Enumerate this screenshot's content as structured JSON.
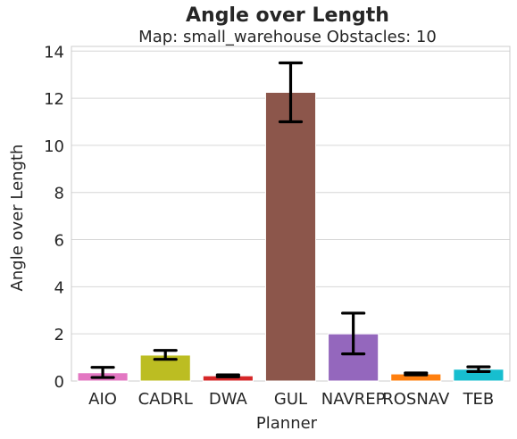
{
  "chart_data": {
    "type": "bar",
    "title": "Angle over Length",
    "subtitle": "Map: small_warehouse Obstacles: 10",
    "xlabel": "Planner",
    "ylabel": "Angle over Length",
    "ylim": [
      0,
      14.2
    ],
    "yticks": [
      "0",
      "2",
      "4",
      "6",
      "8",
      "10",
      "12",
      "14"
    ],
    "grid": true,
    "categories": [
      "AIO",
      "CADRL",
      "DWA",
      "GUL",
      "NAVREP",
      "ROSNAV",
      "TEB"
    ],
    "values": [
      0.35,
      1.1,
      0.22,
      12.25,
      2.0,
      0.3,
      0.5
    ],
    "error_low": [
      0.15,
      0.92,
      0.18,
      11.0,
      1.15,
      0.26,
      0.4
    ],
    "error_high": [
      0.58,
      1.3,
      0.26,
      13.5,
      2.88,
      0.34,
      0.6
    ],
    "colors": [
      "#e377c2",
      "#bcbd22",
      "#d62728",
      "#8c564b",
      "#9467bd",
      "#ff7f0e",
      "#17becf"
    ]
  }
}
